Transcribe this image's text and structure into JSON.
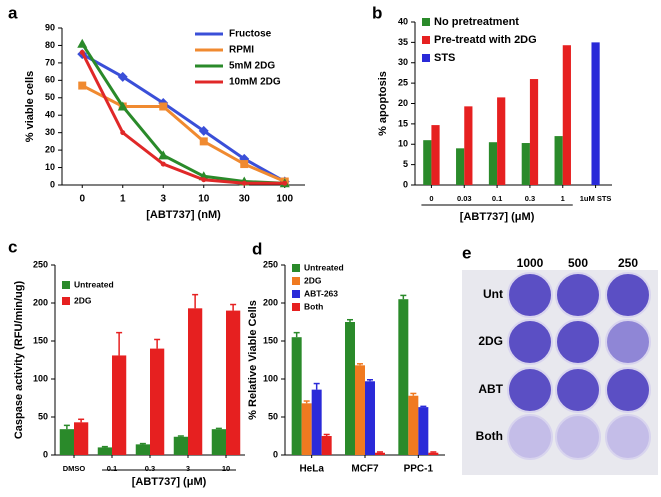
{
  "chart_data": [
    {
      "type": "line",
      "panel_label": "a",
      "xlabel": "[ABT737] (nM)",
      "ylabel": "% viable cells",
      "categories": [
        "0",
        "1",
        "3",
        "10",
        "30",
        "100"
      ],
      "ylim": [
        0,
        90
      ],
      "yticks": [
        0,
        10,
        20,
        30,
        40,
        50,
        60,
        70,
        80,
        90
      ],
      "series": [
        {
          "name": "Fructose",
          "color": "#3a4fd8",
          "marker": "diamond",
          "values": [
            75,
            62,
            47,
            31,
            15,
            2
          ]
        },
        {
          "name": "RPMI",
          "color": "#f08a30",
          "marker": "square",
          "values": [
            57,
            45,
            45,
            25,
            12,
            2
          ]
        },
        {
          "name": "5mM 2DG",
          "color": "#2a8a2a",
          "marker": "triangle",
          "values": [
            81,
            45,
            17,
            5,
            2,
            1
          ]
        },
        {
          "name": "10mM 2DG",
          "color": "#e02828",
          "marker": "circle",
          "values": [
            76,
            30,
            12,
            3,
            1,
            1
          ]
        }
      ]
    },
    {
      "type": "bar",
      "panel_label": "b",
      "xlabel": "[ABT737] (μM)",
      "ylabel": "% apoptosis",
      "categories": [
        "0",
        "0.03",
        "0.1",
        "0.3",
        "1",
        "1uM STS"
      ],
      "ylim": [
        0,
        40
      ],
      "yticks": [
        0,
        5,
        10,
        15,
        20,
        25,
        30,
        35,
        40
      ],
      "series": [
        {
          "name": "No pretreatment",
          "color": "#2a8a2a",
          "values": [
            11,
            9,
            10.5,
            10.3,
            12,
            null
          ]
        },
        {
          "name": "Pre-treatd with 2DG",
          "color": "#e62020",
          "values": [
            14.7,
            19.3,
            21.5,
            26,
            34.3,
            null
          ]
        },
        {
          "name": "STS",
          "color": "#2a2ad8",
          "values": [
            null,
            null,
            null,
            null,
            null,
            35
          ]
        }
      ]
    },
    {
      "type": "bar",
      "panel_label": "c",
      "xlabel": "[ABT737] (μM)",
      "ylabel": "Caspase activity (RFU/min/ug)",
      "categories": [
        "DMSO",
        "0.1",
        "0.3",
        "3",
        "10"
      ],
      "ylim": [
        0,
        250
      ],
      "yticks": [
        0,
        50,
        100,
        150,
        200,
        250
      ],
      "series": [
        {
          "name": "Untreated",
          "color": "#2a8a2a",
          "values": [
            34,
            10,
            14,
            24,
            34
          ],
          "errors": [
            5,
            1,
            1,
            1,
            1
          ]
        },
        {
          "name": "2DG",
          "color": "#e62020",
          "values": [
            43,
            131,
            140,
            193,
            190
          ],
          "errors": [
            4,
            30,
            12,
            18,
            8
          ]
        }
      ]
    },
    {
      "type": "bar",
      "panel_label": "d",
      "ylabel": "% Relative Viable Cells",
      "categories": [
        "HeLa",
        "MCF7",
        "PPC-1"
      ],
      "ylim": [
        0,
        250
      ],
      "yticks": [
        0,
        50,
        100,
        150,
        200,
        250
      ],
      "series": [
        {
          "name": "Untreated",
          "color": "#2a8a2a",
          "values": [
            155,
            175,
            205
          ],
          "errors": [
            6,
            3,
            5
          ]
        },
        {
          "name": "2DG",
          "color": "#f07a20",
          "values": [
            68,
            118,
            78
          ],
          "errors": [
            3,
            2,
            3
          ]
        },
        {
          "name": "ABT-263",
          "color": "#2a2ad8",
          "values": [
            86,
            97,
            63
          ],
          "errors": [
            8,
            2,
            1
          ]
        },
        {
          "name": "Both",
          "color": "#e62020",
          "values": [
            25,
            3,
            3
          ],
          "errors": [
            2,
            1,
            1
          ]
        }
      ]
    }
  ],
  "panel_e": {
    "panel_label": "e",
    "columns": [
      "1000",
      "500",
      "250"
    ],
    "rows": [
      "Unt",
      "2DG",
      "ABT",
      "Both"
    ]
  }
}
